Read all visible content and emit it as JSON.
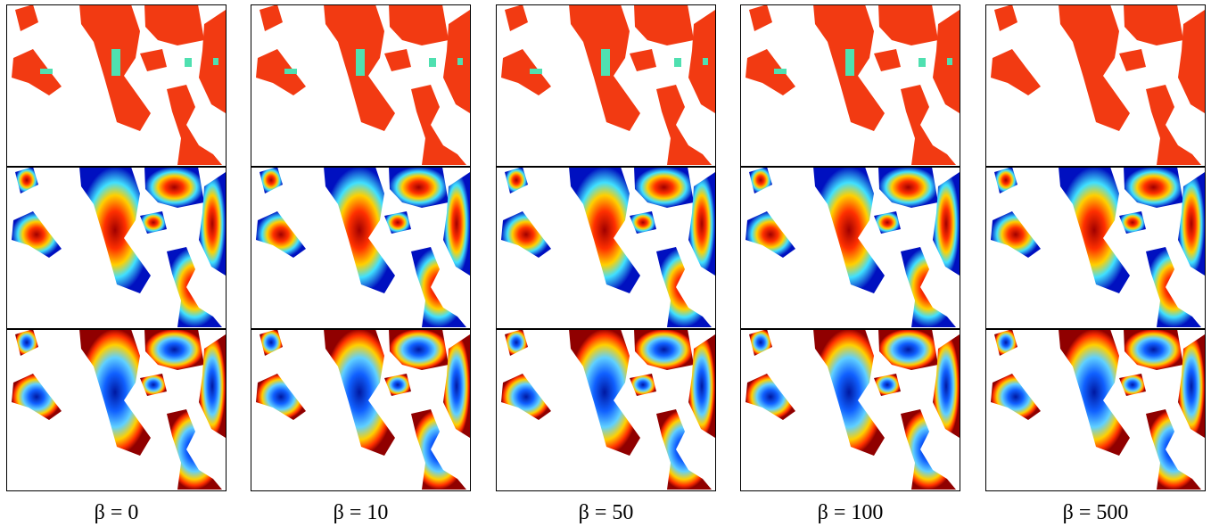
{
  "captions": [
    "β = 0",
    "β = 10",
    "β = 50",
    "β = 100",
    "β = 500"
  ]
}
